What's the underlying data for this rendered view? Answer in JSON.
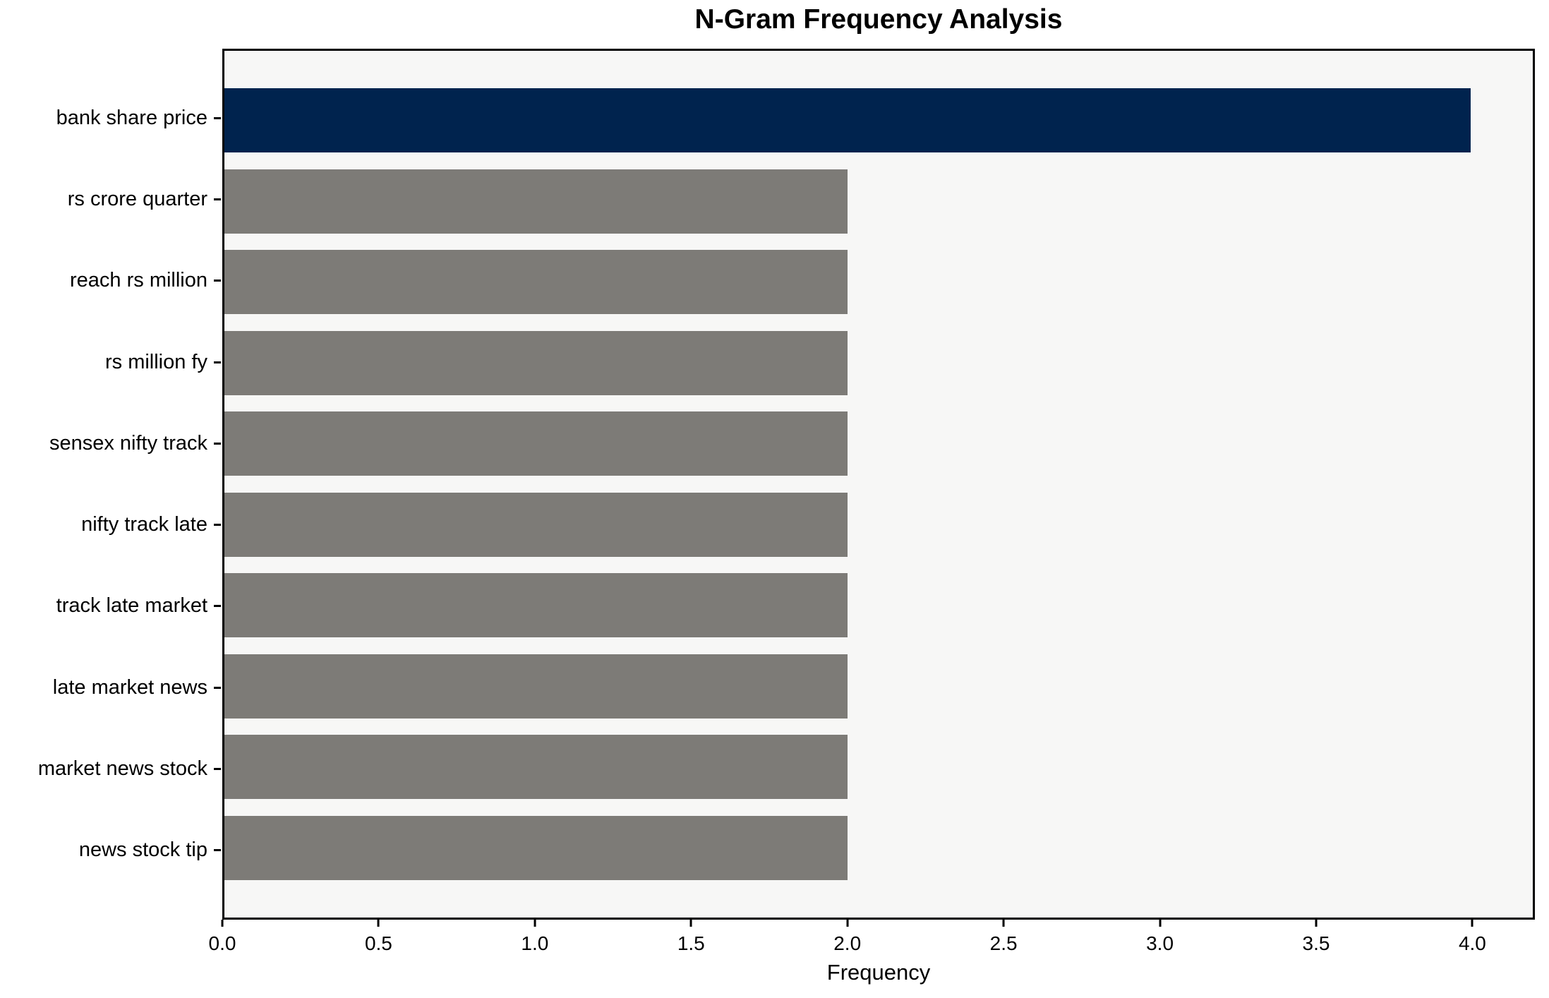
{
  "title": "N-Gram Frequency Analysis",
  "chart_data": {
    "type": "bar",
    "orientation": "horizontal",
    "title": "N-Gram Frequency Analysis",
    "xlabel": "Frequency",
    "ylabel": "",
    "categories": [
      "bank share price",
      "rs crore quarter",
      "reach rs million",
      "rs million fy",
      "sensex nifty track",
      "nifty track late",
      "track late market",
      "late market news",
      "market news stock",
      "news stock tip"
    ],
    "values": [
      4,
      2,
      2,
      2,
      2,
      2,
      2,
      2,
      2,
      2
    ],
    "bar_colors": [
      "#00234e",
      "#7d7b77",
      "#7d7b77",
      "#7d7b77",
      "#7d7b77",
      "#7d7b77",
      "#7d7b77",
      "#7d7b77",
      "#7d7b77",
      "#7d7b77"
    ],
    "xlim": [
      0,
      4.2
    ],
    "xticks": [
      0.0,
      0.5,
      1.0,
      1.5,
      2.0,
      2.5,
      3.0,
      3.5,
      4.0
    ],
    "xtick_labels": [
      "0.0",
      "0.5",
      "1.0",
      "1.5",
      "2.0",
      "2.5",
      "3.0",
      "3.5",
      "4.0"
    ],
    "grid": false,
    "legend": null,
    "plot_background": "#f7f7f6",
    "figure_background": "#ffffff",
    "highlight_color": "#00234e",
    "default_color": "#7d7b77"
  }
}
